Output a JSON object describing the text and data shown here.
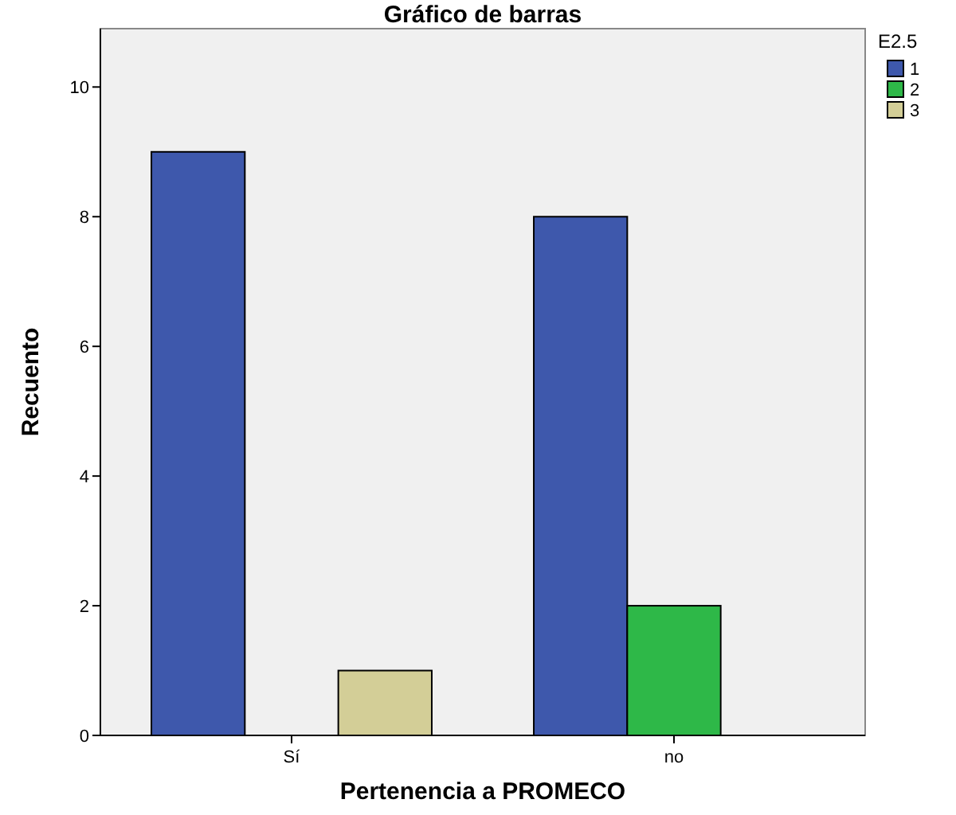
{
  "chart_data": {
    "type": "bar",
    "title": "Gráfico de barras",
    "xlabel": "Pertenencia a PROMECO",
    "ylabel": "Recuento",
    "legend_title": "E2.5",
    "categories": [
      "Sí",
      "no"
    ],
    "series": [
      {
        "name": "1",
        "color": "#3e58ac",
        "values": [
          9,
          8
        ]
      },
      {
        "name": "2",
        "color": "#2eb848",
        "values": [
          null,
          2
        ]
      },
      {
        "name": "3",
        "color": "#d3ce97",
        "values": [
          1,
          null
        ]
      }
    ],
    "ylim": [
      0,
      10.9
    ],
    "yticks": [
      0,
      2,
      4,
      6,
      8,
      10
    ],
    "grid": false,
    "legend": "right"
  }
}
